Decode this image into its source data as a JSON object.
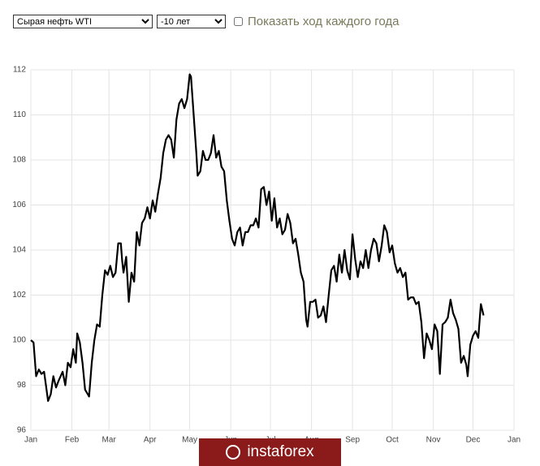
{
  "controls": {
    "commodity_select": "Сырая нефть WTI",
    "period_select": "-10 лет",
    "checkbox_label": "Показать ход каждого года"
  },
  "chart_data": {
    "type": "line",
    "x": [
      0,
      2,
      4,
      6,
      8,
      10,
      13,
      15,
      17,
      19,
      21,
      24,
      26,
      28,
      30,
      32,
      34,
      35,
      37,
      39,
      41,
      43,
      44,
      46,
      48,
      50,
      52,
      54,
      56,
      58,
      60,
      62,
      64,
      66,
      68,
      69,
      70,
      72,
      74,
      76,
      78,
      80,
      82,
      84,
      86,
      88,
      90,
      92,
      94,
      96,
      98,
      100,
      102,
      104,
      106,
      108,
      110,
      112,
      114,
      116,
      118,
      120,
      121,
      123,
      125,
      126,
      128,
      130,
      132,
      134,
      136,
      138,
      140,
      142,
      144,
      146,
      148,
      150,
      152,
      154,
      156,
      158,
      160,
      162,
      164,
      166,
      168,
      170,
      172,
      174,
      176,
      178,
      180,
      182,
      184,
      186,
      188,
      190,
      192,
      194,
      196,
      198,
      200,
      202,
      204,
      206,
      208,
      209,
      211,
      213,
      215,
      217,
      219,
      221,
      223,
      225,
      227,
      229,
      231,
      233,
      235,
      237,
      239,
      241,
      243,
      245,
      247,
      249,
      251,
      253,
      255,
      257,
      259,
      261,
      263,
      265,
      267,
      269,
      271,
      273,
      275,
      277,
      279,
      281,
      283,
      285,
      287,
      289,
      291,
      293,
      295,
      297,
      299,
      301,
      303,
      305,
      307,
      309,
      311,
      313,
      315,
      317,
      319,
      321,
      323,
      325,
      327,
      329,
      330,
      332,
      334,
      336,
      338,
      340,
      342
    ],
    "values": [
      100.0,
      99.9,
      98.4,
      98.7,
      98.5,
      98.6,
      97.3,
      97.6,
      98.4,
      97.9,
      98.2,
      98.6,
      98.0,
      99.0,
      98.8,
      99.6,
      99.0,
      100.3,
      99.9,
      99.0,
      97.8,
      97.6,
      97.5,
      99.0,
      100.0,
      100.7,
      100.6,
      102.0,
      103.1,
      102.9,
      103.3,
      102.8,
      103.0,
      104.3,
      104.3,
      103.5,
      103.0,
      103.7,
      101.7,
      103.0,
      102.6,
      104.8,
      104.2,
      105.2,
      105.4,
      105.9,
      105.4,
      106.2,
      105.7,
      106.5,
      107.2,
      108.3,
      108.9,
      109.1,
      108.9,
      108.1,
      109.8,
      110.5,
      110.7,
      110.3,
      110.7,
      111.8,
      111.7,
      110.0,
      108.3,
      107.3,
      107.5,
      108.4,
      108.0,
      108.0,
      108.3,
      109.1,
      108.1,
      108.4,
      107.7,
      107.5,
      106.2,
      105.3,
      104.5,
      104.2,
      104.8,
      105.0,
      104.2,
      104.8,
      104.8,
      105.1,
      105.1,
      105.4,
      105.0,
      106.7,
      106.8,
      106.0,
      106.6,
      105.3,
      106.3,
      105.0,
      105.4,
      104.7,
      104.9,
      105.6,
      105.2,
      104.3,
      104.5,
      103.8,
      103.0,
      102.6,
      100.9,
      100.6,
      101.7,
      101.7,
      101.8,
      101.0,
      101.1,
      101.5,
      100.8,
      102.0,
      103.1,
      103.3,
      102.6,
      103.8,
      103.0,
      104.0,
      103.1,
      102.7,
      104.7,
      103.6,
      102.8,
      103.5,
      103.2,
      104.0,
      103.2,
      104.0,
      104.5,
      104.3,
      103.5,
      104.2,
      105.1,
      104.8,
      103.9,
      104.2,
      103.4,
      103.0,
      103.2,
      102.8,
      103.0,
      101.8,
      101.9,
      101.9,
      101.6,
      101.7,
      100.8,
      99.2,
      100.3,
      100.0,
      99.6,
      100.7,
      100.4,
      98.5,
      100.7,
      100.8,
      101.0,
      101.8,
      101.2,
      100.9,
      100.5,
      99.0,
      99.3,
      98.9,
      98.4,
      99.8,
      100.2,
      100.4,
      100.1,
      101.6,
      101.1
    ],
    "color": "#000000",
    "xlim": [
      0,
      365
    ],
    "xticks": [
      {
        "value": 0,
        "label": "Jan"
      },
      {
        "value": 31,
        "label": "Feb"
      },
      {
        "value": 59,
        "label": "Mar"
      },
      {
        "value": 90,
        "label": "Apr"
      },
      {
        "value": 120,
        "label": "May"
      },
      {
        "value": 151,
        "label": "Jun"
      },
      {
        "value": 181,
        "label": "Jul"
      },
      {
        "value": 212,
        "label": "Aug"
      },
      {
        "value": 243,
        "label": "Sep"
      },
      {
        "value": 273,
        "label": "Oct"
      },
      {
        "value": 304,
        "label": "Nov"
      },
      {
        "value": 334,
        "label": "Dec"
      },
      {
        "value": 365,
        "label": "Jan"
      }
    ],
    "ylim": [
      96,
      112
    ],
    "yticks": [
      96,
      98,
      100,
      102,
      104,
      106,
      108,
      110,
      112
    ],
    "grid": true
  },
  "watermark": "instaforex"
}
